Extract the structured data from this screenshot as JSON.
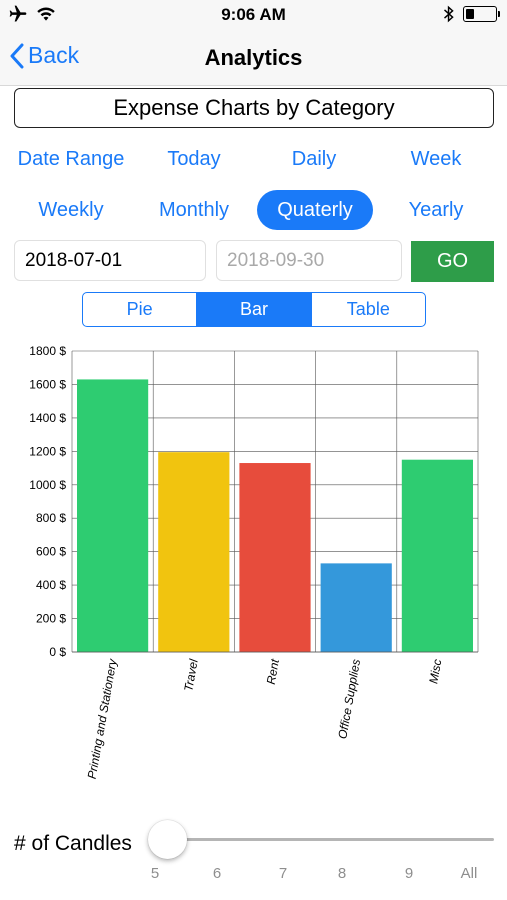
{
  "status_bar": {
    "time": "9:06 AM",
    "icons": [
      "airplane-icon",
      "wifi-icon",
      "bluetooth-icon",
      "battery-icon"
    ]
  },
  "nav": {
    "back_label": "Back",
    "title": "Analytics"
  },
  "header_box": {
    "title": "Expense Charts by Category"
  },
  "range_options": {
    "row1": [
      "Date Range",
      "Today",
      "Daily",
      "Week"
    ],
    "row2": [
      "Weekly",
      "Monthly",
      "Quaterly",
      "Yearly"
    ],
    "selected": "Quaterly"
  },
  "dates": {
    "start_value": "2018-07-01",
    "end_placeholder": "2018-09-30",
    "go_label": "GO"
  },
  "view_tabs": {
    "items": [
      "Pie",
      "Bar",
      "Table"
    ],
    "selected": "Bar"
  },
  "chart_data": {
    "type": "bar",
    "categories": [
      "Printing and Stationery",
      "Travel",
      "Rent",
      "Office Supplies",
      "Misc"
    ],
    "values": [
      1630,
      1195,
      1130,
      530,
      1150
    ],
    "colors": [
      "#2ecc71",
      "#f1c40f",
      "#e74c3c",
      "#3498db",
      "#2ecc71"
    ],
    "ylim": [
      0,
      1800
    ],
    "y_ticks": [
      "0 $",
      "200 $",
      "400 $",
      "600 $",
      "800 $",
      "1000 $",
      "1200 $",
      "1400 $",
      "1600 $",
      "1800 $"
    ],
    "grid": true,
    "title": "",
    "xlabel": "",
    "ylabel": ""
  },
  "candles": {
    "label": "# of Candles",
    "options": [
      "5",
      "6",
      "7",
      "8",
      "9",
      "All"
    ],
    "selected": "5"
  }
}
